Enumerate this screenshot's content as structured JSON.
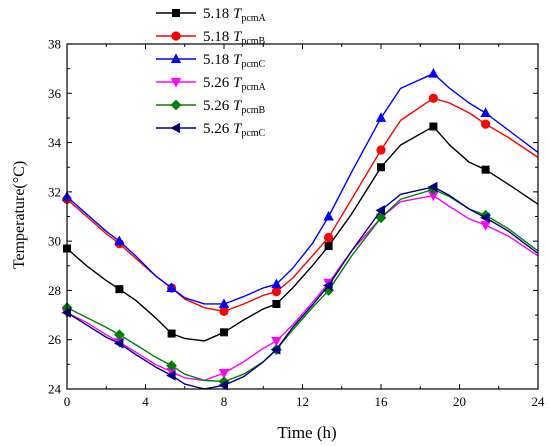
{
  "chart_data": {
    "type": "line",
    "xlabel": "Time (h)",
    "ylabel": "Temperature(°C)",
    "xlim": [
      0,
      24
    ],
    "ylim": [
      24,
      38
    ],
    "xticks": [
      0,
      4,
      8,
      12,
      16,
      20,
      24
    ],
    "yticks": [
      24,
      26,
      28,
      30,
      32,
      34,
      36,
      38
    ],
    "legend_position": "top-left",
    "series": [
      {
        "name_prefix": "5.18",
        "name_var": "T",
        "name_sub": "pcmA",
        "color": "#000000",
        "marker": "square",
        "x": [
          0,
          1,
          2,
          2.67,
          3.5,
          4.5,
          5.33,
          6,
          7,
          8,
          9,
          10,
          10.67,
          11.5,
          12.5,
          13.33,
          14.5,
          16,
          17,
          18.67,
          19.5,
          20.5,
          21.33,
          22.5,
          24
        ],
        "y": [
          29.7,
          29.0,
          28.4,
          28.05,
          27.6,
          26.9,
          26.25,
          26.05,
          25.95,
          26.3,
          26.8,
          27.25,
          27.45,
          28.1,
          29.0,
          29.8,
          31.1,
          33.0,
          33.9,
          34.65,
          33.9,
          33.2,
          32.9,
          32.3,
          31.5
        ]
      },
      {
        "name_prefix": "5.18",
        "name_var": "T",
        "name_sub": "pcmB",
        "color": "#ff0000",
        "marker": "circle",
        "x": [
          0,
          1,
          2,
          2.67,
          3.5,
          4.5,
          5.33,
          6,
          7,
          8,
          9,
          10,
          10.67,
          11.5,
          12.5,
          13.33,
          14.5,
          16,
          17,
          18.67,
          19.5,
          20.5,
          21.33,
          22.5,
          24
        ],
        "y": [
          31.7,
          31.0,
          30.3,
          29.9,
          29.3,
          28.6,
          28.1,
          27.65,
          27.3,
          27.15,
          27.45,
          27.8,
          27.95,
          28.5,
          29.4,
          30.15,
          31.7,
          33.7,
          34.9,
          35.8,
          35.6,
          35.2,
          34.75,
          34.2,
          33.4
        ]
      },
      {
        "name_prefix": "5.18",
        "name_var": "T",
        "name_sub": "pcmC",
        "color": "#0000ff",
        "marker": "triangle-up",
        "x": [
          0,
          1,
          2,
          2.67,
          3.5,
          4.5,
          5.33,
          6,
          7,
          8,
          9,
          10,
          10.67,
          11.5,
          12.5,
          13.33,
          14.5,
          16,
          17,
          18.67,
          19.5,
          20.5,
          21.33,
          22.5,
          24
        ],
        "y": [
          31.8,
          31.1,
          30.4,
          30.0,
          29.4,
          28.6,
          28.1,
          27.7,
          27.45,
          27.45,
          27.75,
          28.1,
          28.25,
          28.9,
          29.9,
          31.0,
          32.8,
          35.0,
          36.2,
          36.8,
          36.2,
          35.6,
          35.2,
          34.5,
          33.6
        ]
      },
      {
        "name_prefix": "5.26",
        "name_var": "T",
        "name_sub": "pcmA",
        "color": "#ff00ff",
        "marker": "triangle-down",
        "x": [
          0,
          1,
          2,
          2.67,
          3.5,
          4.5,
          5.33,
          6,
          7,
          8,
          9,
          10,
          10.67,
          11.5,
          12.5,
          13.33,
          14.5,
          16,
          17,
          18.67,
          19.5,
          20.5,
          21.33,
          22.5,
          24
        ],
        "y": [
          27.1,
          26.7,
          26.2,
          25.9,
          25.5,
          25.0,
          24.7,
          24.45,
          24.35,
          24.65,
          25.1,
          25.65,
          25.95,
          26.6,
          27.5,
          28.3,
          29.6,
          30.95,
          31.6,
          31.85,
          31.4,
          30.9,
          30.65,
          30.2,
          29.4
        ]
      },
      {
        "name_prefix": "5.26",
        "name_var": "T",
        "name_sub": "pcmB",
        "color": "#008000",
        "marker": "diamond",
        "x": [
          0,
          1,
          2,
          2.67,
          3.5,
          4.5,
          5.33,
          6,
          7,
          8,
          9,
          10,
          10.67,
          11.5,
          12.5,
          13.33,
          14.5,
          16,
          17,
          18.67,
          19.5,
          20.5,
          21.33,
          22.5,
          24
        ],
        "y": [
          27.3,
          26.9,
          26.5,
          26.2,
          25.8,
          25.3,
          24.95,
          24.6,
          24.35,
          24.3,
          24.6,
          25.1,
          25.6,
          26.4,
          27.3,
          28.0,
          29.4,
          30.95,
          31.7,
          32.1,
          31.8,
          31.3,
          31.05,
          30.5,
          29.6
        ]
      },
      {
        "name_prefix": "5.26",
        "name_var": "T",
        "name_sub": "pcmC",
        "color": "#000080",
        "marker": "triangle-left",
        "x": [
          0,
          1,
          2,
          2.67,
          3.5,
          4.5,
          5.33,
          6,
          7,
          8,
          9,
          10,
          10.67,
          11.5,
          12.5,
          13.33,
          14.5,
          16,
          17,
          18.67,
          19.5,
          20.5,
          21.33,
          22.5,
          24
        ],
        "y": [
          27.1,
          26.6,
          26.1,
          25.85,
          25.4,
          24.9,
          24.55,
          24.2,
          24.0,
          24.15,
          24.5,
          25.1,
          25.6,
          26.5,
          27.4,
          28.2,
          29.6,
          31.25,
          31.9,
          32.2,
          31.85,
          31.3,
          30.95,
          30.4,
          29.5
        ]
      }
    ]
  }
}
